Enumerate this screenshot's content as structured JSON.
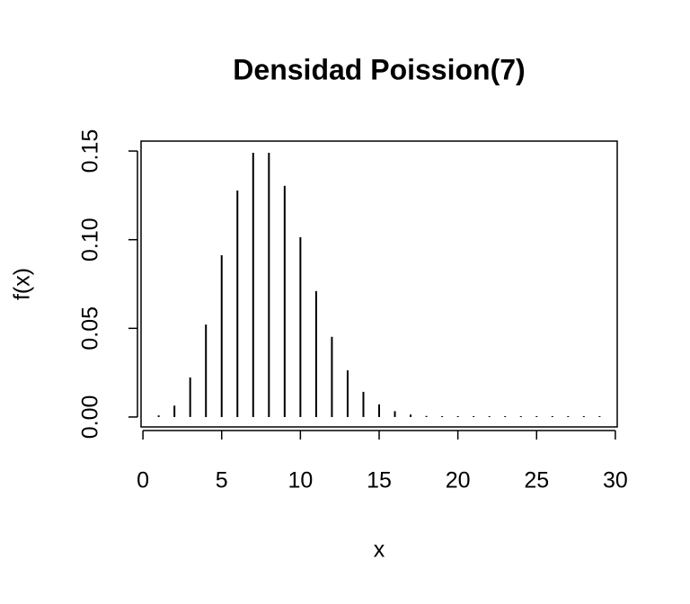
{
  "chart_data": {
    "type": "lollipop-h",
    "title": "Densidad Poission(7)",
    "x_label": "x",
    "y_label": "f(x)",
    "x": [
      1,
      2,
      3,
      4,
      5,
      6,
      7,
      8,
      9,
      10,
      11,
      12,
      13,
      14,
      15,
      16,
      17,
      18,
      19,
      20,
      21,
      22,
      23,
      24,
      25,
      26,
      27,
      28,
      29
    ],
    "values": [
      0.0009,
      0.0064,
      0.0223,
      0.0521,
      0.0912,
      0.1277,
      0.149,
      0.149,
      0.1304,
      0.1014,
      0.071,
      0.0452,
      0.0263,
      0.0142,
      0.0071,
      0.0033,
      0.0014,
      0.0006,
      0.0002,
      0.0001,
      3e-05,
      1e-05,
      0,
      0,
      0,
      0,
      0,
      0,
      0
    ],
    "color": "#000000",
    "xlim": [
      -0.12,
      30.12
    ],
    "ylim": [
      -0.0056,
      0.1556
    ],
    "xticks": [
      0,
      5,
      10,
      15,
      20,
      25,
      30
    ],
    "yticks": [
      {
        "value": 0,
        "label": "0.00"
      },
      {
        "value": 0.05,
        "label": "0.05"
      },
      {
        "value": 0.1,
        "label": "0.10"
      },
      {
        "value": 0.15,
        "label": "0.15"
      }
    ]
  }
}
